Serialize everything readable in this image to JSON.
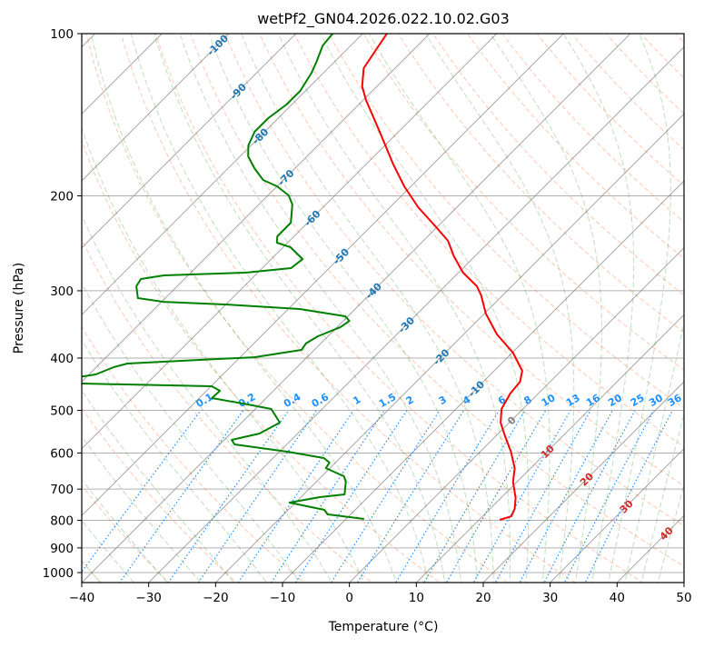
{
  "chart_data": {
    "type": "line",
    "subtype": "skew-t log-p",
    "title": "wetPf2_GN04.2026.022.10.02.G03",
    "xlabel": "Temperature (°C)",
    "ylabel": "Pressure (hPa)",
    "xlim": [
      -40,
      50
    ],
    "ylim": [
      1050,
      100
    ],
    "x_ticks": [
      -40,
      -30,
      -20,
      -10,
      0,
      10,
      20,
      30,
      40,
      50
    ],
    "x_tick_labels": [
      "−40",
      "−30",
      "−20",
      "−10",
      "0",
      "10",
      "20",
      "30",
      "40",
      "50"
    ],
    "y_ticks": [
      100,
      200,
      300,
      400,
      500,
      600,
      700,
      800,
      900,
      1000
    ],
    "y_tick_labels": [
      "100",
      "200",
      "300",
      "400",
      "500",
      "600",
      "700",
      "800",
      "900",
      "1000"
    ],
    "grid": true,
    "series": [
      {
        "name": "temperature",
        "color": "#ff0000",
        "pressure": [
          100,
          115.9,
          125.3,
          132.8,
          152.1,
          174.2,
          192.0,
          209.9,
          228.7,
          242.4,
          259.0,
          277.7,
          294.3,
          306.0,
          330.7,
          361.6,
          390.8,
          422.3,
          442.5,
          465.4,
          497.2,
          527.0,
          558.5,
          596.8,
          640.0,
          678.4,
          727.2,
          762.0,
          786.3,
          798.5
        ],
        "values": [
          -76.4,
          -74.7,
          -72.2,
          -69.6,
          -62.8,
          -56.1,
          -51.0,
          -45.8,
          -40.1,
          -36.3,
          -33.1,
          -29.3,
          -25.2,
          -23.2,
          -19.8,
          -15.0,
          -9.9,
          -5.8,
          -4.5,
          -4.2,
          -3.2,
          -1.3,
          1.4,
          4.6,
          7.6,
          9.4,
          12.2,
          13.7,
          14.3,
          13.1
        ]
      },
      {
        "name": "dewpoint",
        "color": "#008000",
        "pressure": [
          100,
          105.2,
          112.8,
          118.2,
          127.7,
          135.4,
          143.5,
          152.1,
          161.2,
          168.9,
          177.7,
          186.9,
          192.0,
          199.6,
          207.5,
          224.3,
          230.4,
          237.7,
          244.3,
          249.1,
          262.0,
          272.3,
          277.7,
          280.9,
          285.3,
          294.3,
          309.6,
          314.5,
          318.2,
          324.3,
          334.5,
          341.2,
          350.6,
          364.4,
          375.8,
          386.3,
          398.5,
          404.7,
          409.4,
          415.8,
          429.0,
          440.8,
          445.9,
          451.1,
          459.9,
          474.5,
          487.5,
          497.2,
          527.0,
          552.1,
          567.3,
          578.4,
          596.8,
          613.1,
          625.2,
          640.0,
          662.7,
          678.4,
          716.1,
          724.4,
          741.6,
          764.9,
          780.0,
          795.4
        ],
        "values": [
          -84.5,
          -84.2,
          -82.7,
          -81.8,
          -80.8,
          -80.8,
          -81.5,
          -81.5,
          -80.4,
          -78.8,
          -76.1,
          -73.0,
          -70.0,
          -66.9,
          -65.0,
          -62.5,
          -62.5,
          -62.5,
          -61.6,
          -58.9,
          -55.3,
          -55.7,
          -61.8,
          -73.6,
          -76.5,
          -76.1,
          -74.1,
          -69.7,
          -59.8,
          -48.3,
          -40.4,
          -39.1,
          -39.5,
          -41.5,
          -42.2,
          -41.9,
          -47.9,
          -58.2,
          -65.9,
          -67.4,
          -69.0,
          -74.2,
          -70.0,
          -49.9,
          -48.0,
          -48.1,
          -41.8,
          -37.6,
          -34.3,
          -35.7,
          -38.9,
          -37.8,
          -28.7,
          -22.4,
          -20.9,
          -20.6,
          -16.7,
          -15.6,
          -13.9,
          -17.2,
          -20.9,
          -14.6,
          -13.4,
          -7.3
        ]
      }
    ],
    "isotherm_labels": [
      {
        "value": -100,
        "text": "-100",
        "color": "#1f77b4"
      },
      {
        "value": -90,
        "text": "-90",
        "color": "#1f77b4"
      },
      {
        "value": -80,
        "text": "-80",
        "color": "#1f77b4"
      },
      {
        "value": -70,
        "text": "-70",
        "color": "#1f77b4"
      },
      {
        "value": -60,
        "text": "-60",
        "color": "#1f77b4"
      },
      {
        "value": -50,
        "text": "-50",
        "color": "#1f77b4"
      },
      {
        "value": -40,
        "text": "-40",
        "color": "#1f77b4"
      },
      {
        "value": -30,
        "text": "-30",
        "color": "#1f77b4"
      },
      {
        "value": -20,
        "text": "-20",
        "color": "#1f77b4"
      },
      {
        "value": -10,
        "text": "-10",
        "color": "#1f77b4"
      },
      {
        "value": 0,
        "text": "0",
        "color": "#808080"
      },
      {
        "value": 10,
        "text": "10",
        "color": "#d62728"
      },
      {
        "value": 20,
        "text": "20",
        "color": "#d62728"
      },
      {
        "value": 30,
        "text": "30",
        "color": "#d62728"
      },
      {
        "value": 40,
        "text": "40",
        "color": "#d62728"
      }
    ],
    "mixing_ratio_lines_gkg": [
      0.1,
      0.2,
      0.4,
      0.6,
      1,
      1.5,
      2,
      3,
      4,
      6,
      8,
      10,
      13,
      16,
      20,
      25,
      30,
      36
    ],
    "mixing_ratio_labels": [
      "0.1",
      "0.2",
      "0.4",
      "0.6",
      "1",
      "1.5",
      "2",
      "3",
      "4",
      "6",
      "8",
      "10",
      "13",
      "16",
      "20",
      "25",
      "30",
      "36"
    ],
    "mixing_ratio_color": "#1e90ff",
    "dry_adiabat_color": "#ff4500",
    "moist_adiabat_color": "#008000",
    "isotherm_color": "#808080"
  }
}
